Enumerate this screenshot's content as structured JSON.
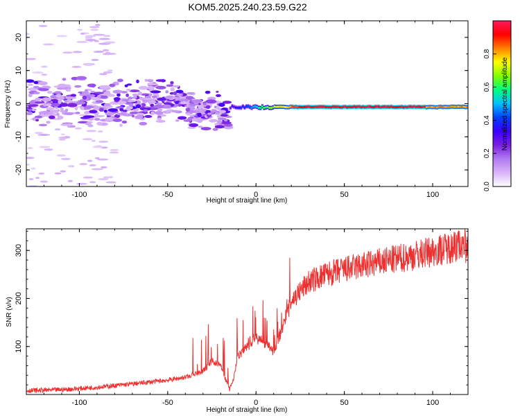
{
  "title": "KOM5.2025.240.23.59.G22",
  "chart_data": [
    {
      "type": "heatmap",
      "xlabel": "Height of straight line (km)",
      "ylabel": "Frequency (Hz)",
      "xlim": [
        -130,
        120
      ],
      "ylim": [
        -25,
        25
      ],
      "xticks": [
        "-100",
        "-50",
        "0",
        "50",
        "100"
      ],
      "xtick_values": [
        -100,
        -50,
        0,
        50,
        100
      ],
      "yticks": [
        "-20",
        "-10",
        "0",
        "10",
        "20"
      ],
      "ytick_values": [
        -20,
        -10,
        0,
        10,
        20
      ],
      "colorbar": {
        "label": "Normalized spectral amplitude",
        "range": [
          0.0,
          1.0
        ],
        "ticks": [
          "0.0",
          "0.2",
          "0.4",
          "0.6",
          "0.8"
        ],
        "tick_values": [
          0.0,
          0.2,
          0.4,
          0.6,
          0.8
        ],
        "colormap": [
          "#ffffff",
          "#d8b4f8",
          "#b07af0",
          "#7a1fe0",
          "#3a00ff",
          "#0040ff",
          "#00c0ff",
          "#00ff80",
          "#80ff00",
          "#ffff00",
          "#ff8000",
          "#ff0000",
          "#ff1a5e"
        ]
      },
      "features": {
        "carrier_line": {
          "x_range": [
            -15,
            120
          ],
          "frequency": -1,
          "peak_amplitude": 1.0
        },
        "scattered_region": {
          "x_range": [
            -130,
            -15
          ],
          "frequency_range": [
            -10,
            10
          ]
        }
      }
    },
    {
      "type": "line",
      "xlabel": "Height of straight line (km)",
      "ylabel": "SNR (v/v)",
      "xlim": [
        -130,
        120
      ],
      "ylim": [
        0,
        345
      ],
      "xticks": [
        "-100",
        "-50",
        "0",
        "50",
        "100"
      ],
      "xtick_values": [
        -100,
        -50,
        0,
        50,
        100
      ],
      "yticks": [
        "100",
        "200",
        "300"
      ],
      "ytick_values": [
        100,
        200,
        300
      ],
      "series": [
        {
          "name": "SNR",
          "color": "#ee3030",
          "x": [
            -130,
            -110,
            -90,
            -70,
            -50,
            -40,
            -30,
            -25,
            -20,
            -15,
            -13,
            -10,
            -5,
            0,
            5,
            10,
            15,
            20,
            25,
            30,
            40,
            50,
            60,
            70,
            80,
            90,
            100,
            110,
            115,
            120
          ],
          "y": [
            8,
            10,
            15,
            22,
            30,
            36,
            48,
            70,
            60,
            10,
            30,
            80,
            100,
            120,
            105,
            90,
            140,
            195,
            215,
            235,
            250,
            260,
            268,
            275,
            282,
            290,
            298,
            306,
            312,
            315
          ]
        }
      ]
    }
  ]
}
